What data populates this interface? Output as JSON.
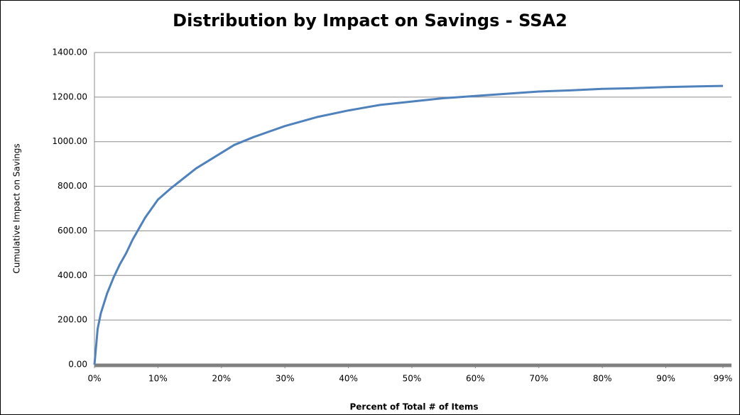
{
  "chart_data": {
    "type": "line",
    "title": "Distribution by Impact on Savings - SSA2",
    "x_label": "Percent of Total # of Items",
    "y_label": "Cumulative Impact on Savings",
    "xlim": [
      0,
      99
    ],
    "ylim": [
      0,
      1400
    ],
    "xticks": [
      {
        "value": 0,
        "label": "0%"
      },
      {
        "value": 10,
        "label": "10%"
      },
      {
        "value": 20,
        "label": "20%"
      },
      {
        "value": 30,
        "label": "30%"
      },
      {
        "value": 40,
        "label": "40%"
      },
      {
        "value": 50,
        "label": "50%"
      },
      {
        "value": 60,
        "label": "60%"
      },
      {
        "value": 70,
        "label": "70%"
      },
      {
        "value": 80,
        "label": "80%"
      },
      {
        "value": 90,
        "label": "90%"
      },
      {
        "value": 99,
        "label": "99%"
      }
    ],
    "yticks": [
      {
        "value": 0,
        "label": "0.00"
      },
      {
        "value": 200,
        "label": "200.00"
      },
      {
        "value": 400,
        "label": "400.00"
      },
      {
        "value": 600,
        "label": "600.00"
      },
      {
        "value": 800,
        "label": "800.00"
      },
      {
        "value": 1000,
        "label": "1000.00"
      },
      {
        "value": 1200,
        "label": "1200.00"
      },
      {
        "value": 1400,
        "label": "1400.00"
      }
    ],
    "grid": true,
    "x": [
      0,
      0.5,
      1,
      2,
      3,
      4,
      5,
      6,
      7,
      8,
      9,
      10,
      12,
      14,
      16,
      18,
      20,
      22,
      25,
      30,
      35,
      40,
      45,
      50,
      55,
      60,
      65,
      70,
      75,
      80,
      85,
      90,
      95,
      99
    ],
    "series": [
      {
        "name": "Cumulative Impact on Savings",
        "color": "#4f81bd",
        "values": [
          0,
          160,
          230,
          320,
          390,
          450,
          500,
          560,
          610,
          660,
          700,
          740,
          790,
          835,
          880,
          915,
          950,
          985,
          1020,
          1070,
          1110,
          1140,
          1165,
          1180,
          1195,
          1205,
          1215,
          1225,
          1230,
          1237,
          1240,
          1245,
          1248,
          1250
        ]
      }
    ]
  }
}
